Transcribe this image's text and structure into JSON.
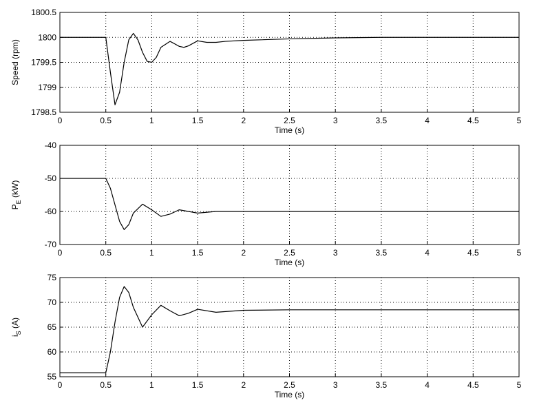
{
  "chart_data": [
    {
      "type": "line",
      "xlabel": "Time (s)",
      "ylabel": [
        "Speed (rpm)"
      ],
      "color": "#000000",
      "grid": true,
      "xlim": [
        0,
        5
      ],
      "xticks": [
        0,
        0.5,
        1,
        1.5,
        2,
        2.5,
        3,
        3.5,
        4,
        4.5,
        5
      ],
      "ylim": [
        1798.5,
        1800.5
      ],
      "yticks": [
        1798.5,
        1799,
        1799.5,
        1800,
        1800.5
      ],
      "x": [
        0,
        0.5,
        0.55,
        0.6,
        0.65,
        0.7,
        0.75,
        0.8,
        0.85,
        0.9,
        0.95,
        1.0,
        1.05,
        1.1,
        1.2,
        1.3,
        1.35,
        1.4,
        1.5,
        1.6,
        1.7,
        1.8,
        2,
        2.5,
        3,
        3.5,
        5
      ],
      "values": [
        1800,
        1800,
        1799.3,
        1798.65,
        1798.9,
        1799.5,
        1799.95,
        1800.08,
        1799.95,
        1799.7,
        1799.52,
        1799.5,
        1799.6,
        1799.8,
        1799.92,
        1799.82,
        1799.8,
        1799.83,
        1799.93,
        1799.9,
        1799.9,
        1799.92,
        1799.94,
        1799.97,
        1799.99,
        1800,
        1800
      ]
    },
    {
      "type": "line",
      "xlabel": "Time (s)",
      "ylabel": [
        "P",
        "E",
        " (kW)"
      ],
      "color": "#000000",
      "grid": true,
      "xlim": [
        0,
        5
      ],
      "xticks": [
        0,
        0.5,
        1,
        1.5,
        2,
        2.5,
        3,
        3.5,
        4,
        4.5,
        5
      ],
      "ylim": [
        -70,
        -40
      ],
      "yticks": [
        -70,
        -60,
        -50,
        -40
      ],
      "x": [
        0,
        0.5,
        0.55,
        0.6,
        0.65,
        0.7,
        0.75,
        0.8,
        0.9,
        1.0,
        1.1,
        1.2,
        1.3,
        1.4,
        1.5,
        1.7,
        2,
        5
      ],
      "values": [
        -50,
        -50,
        -53,
        -58,
        -63,
        -65.5,
        -64,
        -60.5,
        -57.8,
        -59.5,
        -61.5,
        -60.8,
        -59.5,
        -60,
        -60.5,
        -60,
        -60,
        -60
      ]
    },
    {
      "type": "line",
      "xlabel": "Time (s)",
      "ylabel": [
        "i",
        "S",
        " (A)"
      ],
      "color": "#000000",
      "grid": true,
      "xlim": [
        0,
        5
      ],
      "xticks": [
        0,
        0.5,
        1,
        1.5,
        2,
        2.5,
        3,
        3.5,
        4,
        4.5,
        5
      ],
      "ylim": [
        55,
        75
      ],
      "yticks": [
        55,
        60,
        65,
        70,
        75
      ],
      "x": [
        0,
        0.5,
        0.55,
        0.6,
        0.65,
        0.7,
        0.75,
        0.8,
        0.9,
        1.0,
        1.1,
        1.2,
        1.3,
        1.4,
        1.5,
        1.7,
        2,
        2.5,
        5
      ],
      "values": [
        55.8,
        55.8,
        60,
        66,
        71,
        73.2,
        72,
        69,
        65,
        67.5,
        69.4,
        68.3,
        67.3,
        67.8,
        68.6,
        68,
        68.4,
        68.5,
        68.5
      ]
    }
  ]
}
